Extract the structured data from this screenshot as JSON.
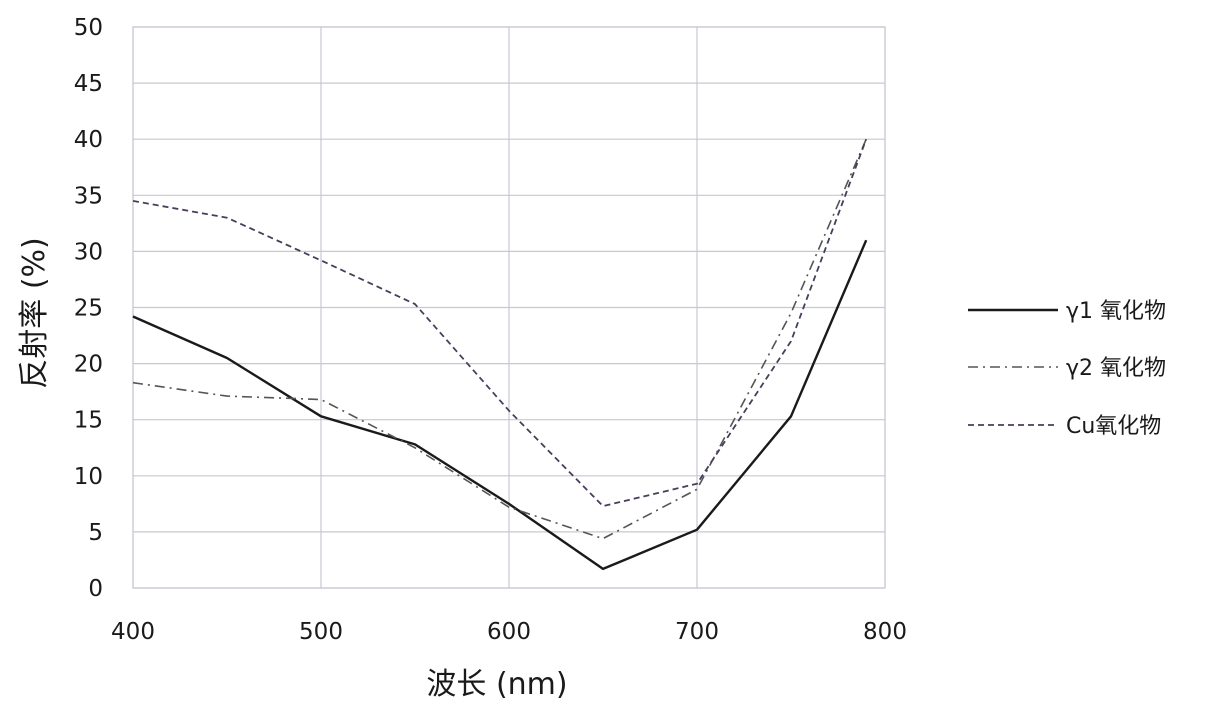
{
  "chart_data": {
    "type": "line",
    "xlabel": "波长 (nm)",
    "ylabel": "反射率 (%)",
    "xlim": [
      400,
      800
    ],
    "ylim": [
      0,
      50
    ],
    "xticks": [
      "400",
      "500",
      "600",
      "700",
      "800"
    ],
    "yticks": [
      "0",
      "5",
      "10",
      "15",
      "20",
      "25",
      "30",
      "35",
      "40",
      "45",
      "50"
    ],
    "grid": true,
    "legend_position": "right",
    "series": [
      {
        "name": "γ1 氧化物",
        "style": "solid",
        "color": "#1a1a1a",
        "x": [
          400,
          450,
          500,
          550,
          600,
          650,
          700,
          750,
          790
        ],
        "y": [
          24.2,
          20.5,
          15.3,
          12.8,
          7.5,
          1.7,
          5.2,
          15.3,
          31.0
        ]
      },
      {
        "name": "γ2 氧化物",
        "style": "dashdot",
        "color": "#555555",
        "x": [
          400,
          450,
          500,
          550,
          600,
          650,
          700,
          750,
          790
        ],
        "y": [
          18.3,
          17.1,
          16.8,
          12.5,
          7.2,
          4.4,
          8.8,
          24.5,
          40.0
        ]
      },
      {
        "name": "Cu氧化物",
        "style": "dashed",
        "color": "#4a3c5c",
        "x": [
          400,
          450,
          500,
          550,
          600,
          650,
          700,
          750,
          790
        ],
        "y": [
          34.5,
          33.0,
          29.2,
          25.3,
          15.8,
          7.3,
          9.3,
          22.0,
          40.0
        ]
      }
    ]
  }
}
